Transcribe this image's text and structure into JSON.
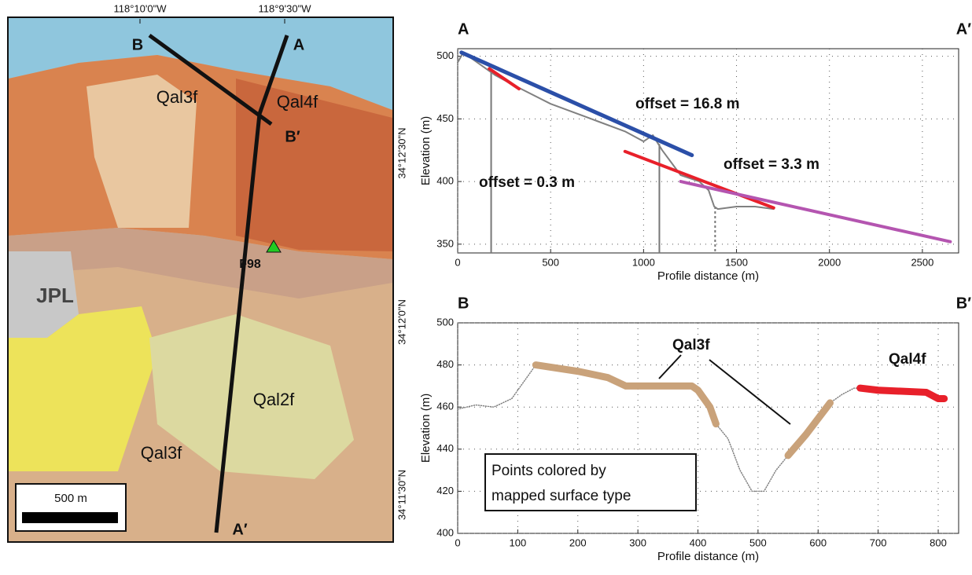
{
  "map": {
    "lon_labels": [
      "118°10'0\"W",
      "118°9'30\"W"
    ],
    "lat_labels": [
      "34°12'30\"N",
      "34°12'0\"N",
      "34°11'30\"N"
    ],
    "line_labels": [
      "B",
      "A",
      "B′",
      "A′"
    ],
    "unit_labels": [
      "Qal3f",
      "Qal4f",
      "JPL",
      "Qal2f",
      "Qal3f"
    ],
    "station": "F98",
    "scale_label": "500 m"
  },
  "chart_data": [
    {
      "type": "line",
      "left_label": "A",
      "right_label": "A′",
      "xlabel": "Profile distance (m)",
      "ylabel": "Elevation (m)",
      "xlim": [
        0,
        2695
      ],
      "ylim": [
        343,
        506
      ],
      "xticks": [
        0,
        500,
        1000,
        1500,
        2000,
        2500
      ],
      "yticks": [
        350,
        400,
        450,
        500
      ],
      "grid": true,
      "series": [
        {
          "color": "#808080",
          "x": [
            0,
            30,
            200,
            300,
            500,
            700,
            900,
            1000,
            1050,
            1100,
            1150,
            1200,
            1300,
            1350,
            1380,
            1400,
            1500,
            1600,
            1700
          ],
          "values": [
            495,
            503,
            485,
            477,
            462,
            451,
            440,
            432,
            437,
            425,
            415,
            405,
            400,
            393,
            380,
            378,
            380,
            380,
            378
          ]
        },
        {
          "color": "#2b4fa8",
          "x": [
            20,
            1260
          ],
          "values": [
            503,
            421
          ]
        },
        {
          "color": "#e8202a",
          "x": [
            170,
            330
          ],
          "values": [
            490,
            474
          ]
        },
        {
          "color": "#e8202a",
          "x": [
            900,
            1700
          ],
          "values": [
            424,
            379
          ]
        },
        {
          "color": "#b455b0",
          "x": [
            1200,
            2650
          ],
          "values": [
            400,
            352
          ]
        }
      ],
      "vlines": [
        {
          "x": 180,
          "top": 487,
          "dashed": false
        },
        {
          "x": 1085,
          "top": 430,
          "dashed": false
        },
        {
          "x": 1385,
          "top": 380,
          "dashed": true
        }
      ],
      "annotations": [
        "offset = 16.8 m",
        "offset = 0.3 m",
        "offset = 3.3 m"
      ]
    },
    {
      "type": "line",
      "left_label": "B",
      "right_label": "B′",
      "xlabel": "Profile distance (m)",
      "ylabel": "Elevation (m)",
      "xlim": [
        0,
        834
      ],
      "ylim": [
        400,
        500
      ],
      "xticks": [
        0,
        100,
        200,
        300,
        400,
        500,
        600,
        700,
        800
      ],
      "yticks": [
        400,
        420,
        440,
        460,
        480,
        500
      ],
      "grid": true,
      "x": [
        0,
        30,
        60,
        90,
        110,
        130,
        200,
        250,
        280,
        350,
        390,
        400,
        420,
        430,
        450,
        470,
        490,
        510,
        530,
        550,
        580,
        620,
        640,
        660,
        670,
        700,
        780,
        800,
        810
      ],
      "series": [
        {
          "color": "#808080",
          "values": [
            459,
            461,
            460,
            464,
            472,
            480,
            477,
            474,
            470,
            470,
            470,
            468,
            460,
            452,
            445,
            430,
            420,
            420,
            430,
            437,
            447,
            462,
            466,
            469,
            469,
            468,
            467,
            464,
            464
          ]
        },
        {
          "name": "Qal3f",
          "color": "#c9a27a",
          "values": [
            null,
            null,
            null,
            null,
            null,
            480,
            477,
            474,
            470,
            470,
            470,
            468,
            460,
            452,
            null,
            null,
            null,
            null,
            null,
            437,
            447,
            462,
            null,
            null,
            null,
            null,
            null,
            null,
            null
          ]
        },
        {
          "name": "Qal4f",
          "color": "#e8202a",
          "values": [
            null,
            null,
            null,
            null,
            null,
            null,
            null,
            null,
            null,
            null,
            null,
            null,
            null,
            null,
            null,
            null,
            null,
            null,
            null,
            null,
            null,
            null,
            null,
            null,
            469,
            468,
            467,
            464,
            464
          ]
        }
      ],
      "annotations": [
        "Points colored by",
        "mapped surface type"
      ]
    }
  ]
}
